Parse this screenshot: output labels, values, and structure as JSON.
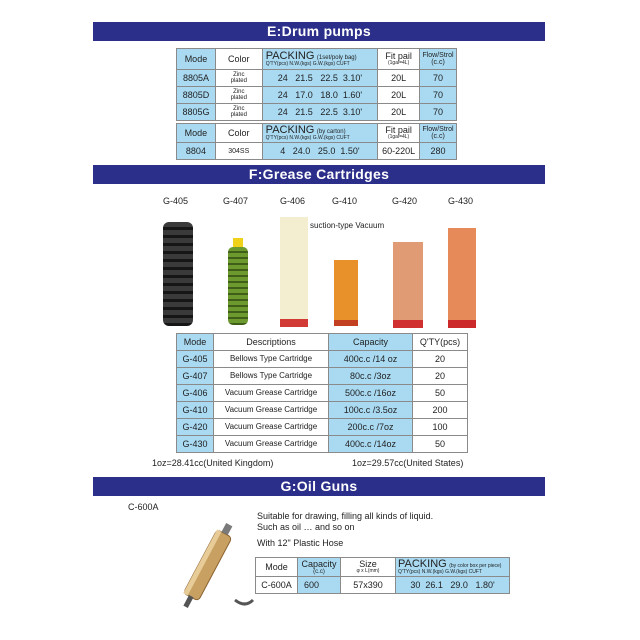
{
  "sections": {
    "e": "E:Drum pumps",
    "f": "F:Grease Cartridges",
    "g": "G:Oil Guns"
  },
  "colors": {
    "banner": "#2b2f8a",
    "cell_blue": "#a9daf2"
  },
  "drum": {
    "t1": {
      "h_mode": "Mode",
      "h_color": "Color",
      "h_packing": "PACKING",
      "h_packing_note": "(1set/poly bag)",
      "h_packing_sub": "Q'TY(pcs) N.W.(kgs) G.W.(kgs) CUFT",
      "h_fit": "Fit pail",
      "h_fit_sub": "(1gal=4L)",
      "h_flow": "Flow/Strol",
      "h_flow_sub": "(c.c)",
      "rows": [
        {
          "mode": "8805A",
          "color1": "Zinc",
          "color2": "plated",
          "qty": "24",
          "nw": "21.5",
          "gw": "22.5",
          "cuft": "3.10'",
          "fit": "20L",
          "flow": "70"
        },
        {
          "mode": "8805D",
          "color1": "Zinc",
          "color2": "plated",
          "qty": "24",
          "nw": "17.0",
          "gw": "18.0",
          "cuft": "1.60'",
          "fit": "20L",
          "flow": "70"
        },
        {
          "mode": "8805G",
          "color1": "Zinc",
          "color2": "plated",
          "qty": "24",
          "nw": "21.5",
          "gw": "22.5",
          "cuft": "3.10'",
          "fit": "20L",
          "flow": "70"
        }
      ]
    },
    "t2": {
      "h_mode": "Mode",
      "h_color": "Color",
      "h_packing": "PACKING",
      "h_packing_note": "(by carton)",
      "h_packing_sub": "Q'TY(pcs) N.W.(kgs) G.W.(kgs) CUFT",
      "h_fit": "Fit pail",
      "h_fit_sub": "(1gal=4L)",
      "h_flow": "Flow/Strol",
      "h_flow_sub": "(c.c)",
      "row": {
        "mode": "8804",
        "color": "304SS",
        "qty": "4",
        "nw": "24.0",
        "gw": "25.0",
        "cuft": "1.50'",
        "fit": "60-220L",
        "flow": "280"
      }
    }
  },
  "grease": {
    "labels": [
      "G-405",
      "G-407",
      "G-406",
      "G-410",
      "G-420",
      "G-430"
    ],
    "suction_note": "suction-type Vacuum",
    "headers": [
      "Mode",
      "Descriptions",
      "Capacity",
      "Q'TY(pcs)"
    ],
    "rows": [
      [
        "G-405",
        "Bellows Type Cartridge",
        "400c.c /14 oz",
        "20"
      ],
      [
        "G-407",
        "Bellows Type Cartridge",
        "80c.c /3oz",
        "20"
      ],
      [
        "G-406",
        "Vacuum Grease Cartridge",
        "500c.c /16oz",
        "50"
      ],
      [
        "G-410",
        "Vacuum Grease Cartridge",
        "100c.c /3.5oz",
        "200"
      ],
      [
        "G-420",
        "Vacuum Grease Cartridge",
        "200c.c /7oz",
        "100"
      ],
      [
        "G-430",
        "Vacuum Grease Cartridge",
        "400c.c /14oz",
        "50"
      ]
    ],
    "note_uk": "1oz=28.41cc(United Kingdom)",
    "note_us": "1oz=29.57cc(United States)"
  },
  "oil": {
    "model_label": "C-600A",
    "desc1": "Suitable for drawing, filling all kinds of liquid.",
    "desc2": "Such as oil … and so on",
    "desc3": "With 12\" Plastic Hose",
    "h_mode": "Mode",
    "h_cap": "Capacity",
    "h_cap_sub": "(c.c)",
    "h_size": "Size",
    "h_size_sub": "φ x L(mm)",
    "h_packing": "PACKING",
    "h_packing_note": "(by color box per piece)",
    "h_packing_sub": "Q'TY(pcs) N.W.(kgs) G.W.(kgs) CUFT",
    "row": {
      "mode": "C-600A",
      "cap": "600",
      "size": "57x390",
      "qty": "30",
      "nw": "26.1",
      "gw": "29.0",
      "cuft": "1.80'"
    }
  }
}
